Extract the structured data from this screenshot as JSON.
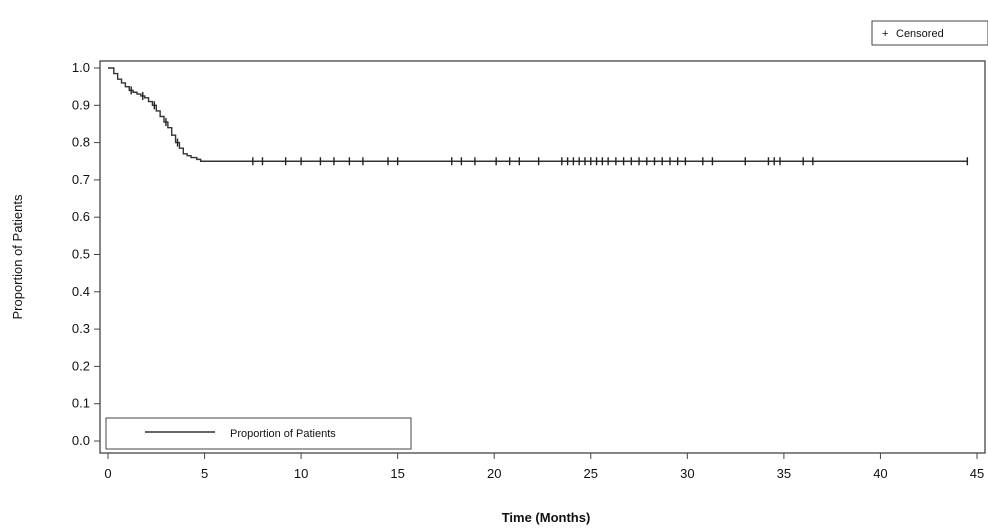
{
  "chart_data": {
    "type": "line",
    "step": true,
    "xlabel": "Time (Months)",
    "ylabel": "Proportion of Patients",
    "xlim": [
      0,
      45
    ],
    "ylim": [
      0.0,
      1.0
    ],
    "x_ticks": [
      "0",
      "5",
      "10",
      "15",
      "20",
      "25",
      "30",
      "35",
      "40",
      "45"
    ],
    "y_ticks": [
      "0.0",
      "0.1",
      "0.2",
      "0.3",
      "0.4",
      "0.5",
      "0.6",
      "0.7",
      "0.8",
      "0.9",
      "1.0"
    ],
    "grid": false,
    "series": [
      {
        "name": "Proportion of Patients",
        "color": "#333333",
        "x": [
          0,
          0.3,
          0.5,
          0.7,
          0.9,
          1.1,
          1.3,
          1.5,
          1.7,
          1.9,
          2.1,
          2.3,
          2.5,
          2.7,
          2.9,
          3.1,
          3.3,
          3.5,
          3.7,
          3.9,
          4.1,
          4.3,
          4.6,
          4.8,
          44.5
        ],
        "y": [
          1.0,
          0.985,
          0.97,
          0.96,
          0.95,
          0.94,
          0.935,
          0.93,
          0.925,
          0.92,
          0.91,
          0.9,
          0.885,
          0.87,
          0.855,
          0.84,
          0.82,
          0.8,
          0.785,
          0.77,
          0.765,
          0.76,
          0.755,
          0.75,
          0.75
        ]
      }
    ],
    "censored": {
      "label": "Censored",
      "marker": "+",
      "x": [
        1.2,
        1.8,
        2.4,
        3.0,
        3.6,
        7.5,
        8.0,
        9.2,
        10.0,
        11.0,
        11.7,
        12.5,
        13.2,
        14.5,
        15.0,
        17.8,
        18.3,
        19.0,
        20.1,
        20.8,
        21.3,
        22.3,
        23.5,
        23.8,
        24.1,
        24.4,
        24.7,
        25.0,
        25.3,
        25.6,
        25.9,
        26.3,
        26.7,
        27.1,
        27.5,
        27.9,
        28.3,
        28.7,
        29.1,
        29.5,
        29.9,
        30.8,
        31.3,
        33.0,
        34.2,
        34.5,
        34.8,
        36.0,
        36.5,
        44.5
      ],
      "y": 0.75
    },
    "legend": {
      "line_entry": "Proportion of Patients",
      "line_entry_position": "bottom-left",
      "marker_entry": "Censored",
      "marker_entry_position": "top-right"
    }
  }
}
